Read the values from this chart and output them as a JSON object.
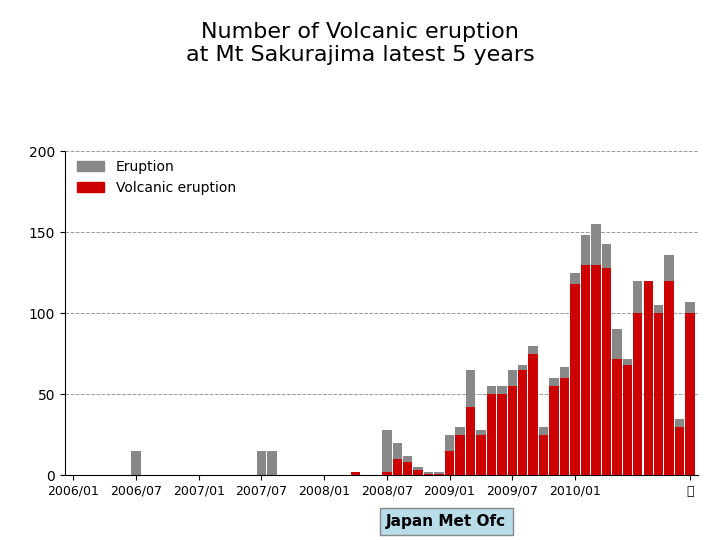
{
  "title": "Number of Volcanic eruption\nat Mt Sakurajima latest 5 years",
  "title_fontsize": 16,
  "ylim": [
    0,
    200
  ],
  "yticks": [
    0,
    50,
    100,
    150,
    200
  ],
  "background_color": "#ffffff",
  "bar_color_eruption": "#888888",
  "bar_color_volcanic": "#cc0000",
  "legend_labels": [
    "Eruption",
    "Volcanic eruption"
  ],
  "annotation": "Japan Met Ofc",
  "annotation_box_color": "#b8dde8",
  "xtick_labels": [
    "2006/01",
    "2006/07",
    "2007/01",
    "2007/07",
    "2008/01",
    "2008/07",
    "2009/01",
    "2009/07",
    "2010/01",
    "年"
  ],
  "eruption": [
    0,
    0,
    0,
    0,
    0,
    0,
    15,
    0,
    0,
    0,
    0,
    0,
    0,
    0,
    0,
    0,
    0,
    0,
    15,
    15,
    0,
    0,
    0,
    0,
    0,
    0,
    0,
    2,
    0,
    0,
    28,
    20,
    12,
    5,
    2,
    2,
    25,
    30,
    65,
    28,
    55,
    55,
    65,
    68,
    80,
    30,
    60,
    67,
    125,
    148,
    155,
    143,
    90,
    72,
    120,
    120,
    105,
    136,
    35,
    107
  ],
  "volcanic": [
    0,
    0,
    0,
    0,
    0,
    0,
    0,
    0,
    0,
    0,
    0,
    0,
    0,
    0,
    0,
    0,
    0,
    0,
    0,
    0,
    0,
    0,
    0,
    0,
    0,
    0,
    0,
    2,
    0,
    0,
    2,
    10,
    8,
    3,
    1,
    1,
    15,
    25,
    42,
    25,
    50,
    50,
    55,
    65,
    75,
    25,
    55,
    60,
    118,
    130,
    130,
    128,
    72,
    68,
    100,
    120,
    100,
    120,
    30,
    100
  ]
}
